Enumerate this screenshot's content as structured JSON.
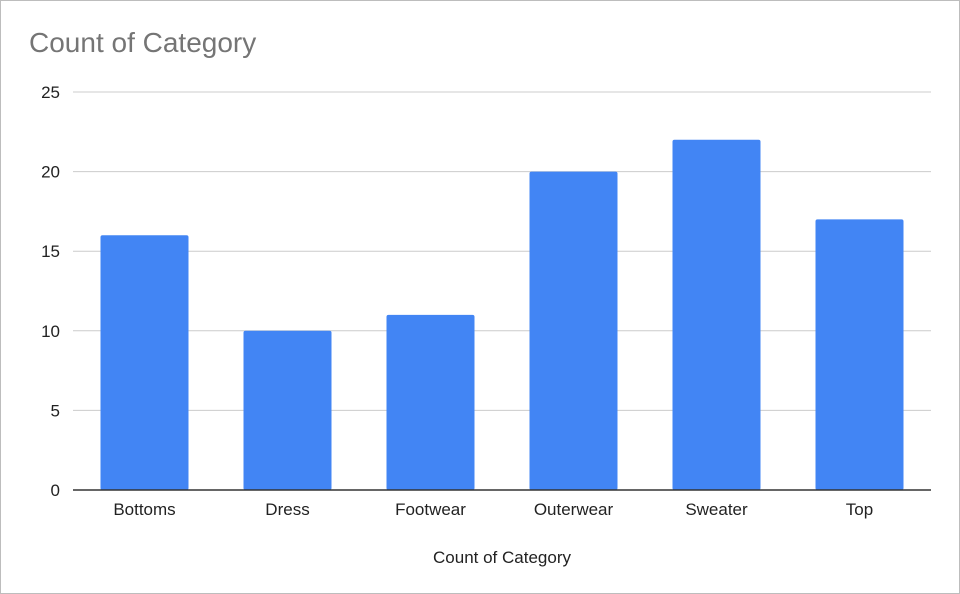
{
  "chart_data": {
    "type": "bar",
    "title": "Count of Category",
    "xlabel": "Count of Category",
    "ylabel": "",
    "categories": [
      "Bottoms",
      "Dress",
      "Footwear",
      "Outerwear",
      "Sweater",
      "Top"
    ],
    "values": [
      16,
      10,
      11,
      20,
      22,
      17
    ],
    "ylim": [
      0,
      25
    ],
    "yticks": [
      0,
      5,
      10,
      15,
      20,
      25
    ],
    "grid": true,
    "bar_color": "#4285f4",
    "gridline_color": "#cccccc",
    "baseline_color": "#333333"
  }
}
